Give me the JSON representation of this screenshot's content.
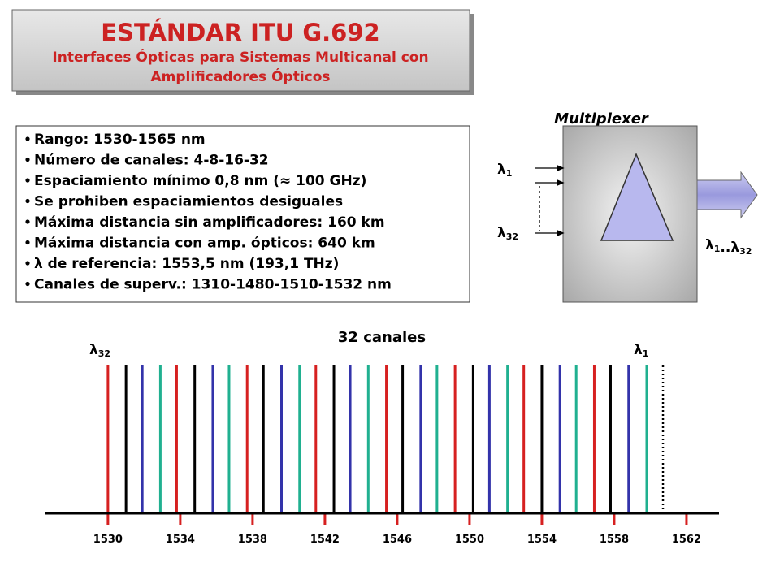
{
  "header": {
    "title": "ESTÁNDAR ITU G.692",
    "subtitle_lines": [
      "Interfaces Ópticas para Sistemas Multicanal con",
      "Amplificadores Ópticos"
    ]
  },
  "bullets": [
    "Rango: 1530-1565  nm",
    "Número de canales: 4-8-16-32",
    "Espaciamiento mínimo 0,8 nm (≈ 100 GHz)",
    "Se prohiben espaciamientos desiguales",
    "Máxima distancia sin amplificadores: 160 km",
    "Máxima distancia con amp. ópticos: 640 km",
    "λ de referencia: 1553,5 nm (193,1 THz)",
    "Canales de superv.: 1310-1480-1510-1532  nm"
  ],
  "multiplexer": {
    "label": "Multiplexer",
    "input_top": {
      "symbol": "λ",
      "sub": "1"
    },
    "input_bottom": {
      "symbol": "λ",
      "sub": "32"
    },
    "output": {
      "symbol_1": "λ",
      "sub_1": "1",
      "separator": "..",
      "symbol_2": "λ",
      "sub_2": "32"
    }
  },
  "spectrum": {
    "title": "32 canales",
    "left_label": {
      "symbol": "λ",
      "sub": "32"
    },
    "right_label": {
      "symbol": "λ",
      "sub": "1"
    },
    "xlim": [
      1526.5,
      1563.8
    ],
    "xticks": [
      1530,
      1534,
      1538,
      1542,
      1546,
      1550,
      1554,
      1558,
      1562
    ],
    "channels": [
      1530,
      1531,
      1531.9,
      1532.9,
      1533.8,
      1534.8,
      1535.8,
      1536.7,
      1537.7,
      1538.6,
      1539.6,
      1540.6,
      1541.5,
      1542.5,
      1543.4,
      1544.4,
      1545.4,
      1546.3,
      1547.3,
      1548.2,
      1549.2,
      1550.2,
      1551.1,
      1552.1,
      1553,
      1554,
      1555,
      1555.9,
      1556.9,
      1557.8,
      1558.8,
      1559.8
    ],
    "colors": [
      "#d62020",
      "#000000",
      "#3333aa",
      "#20b090"
    ],
    "dotted_channel": 1560.7
  }
}
